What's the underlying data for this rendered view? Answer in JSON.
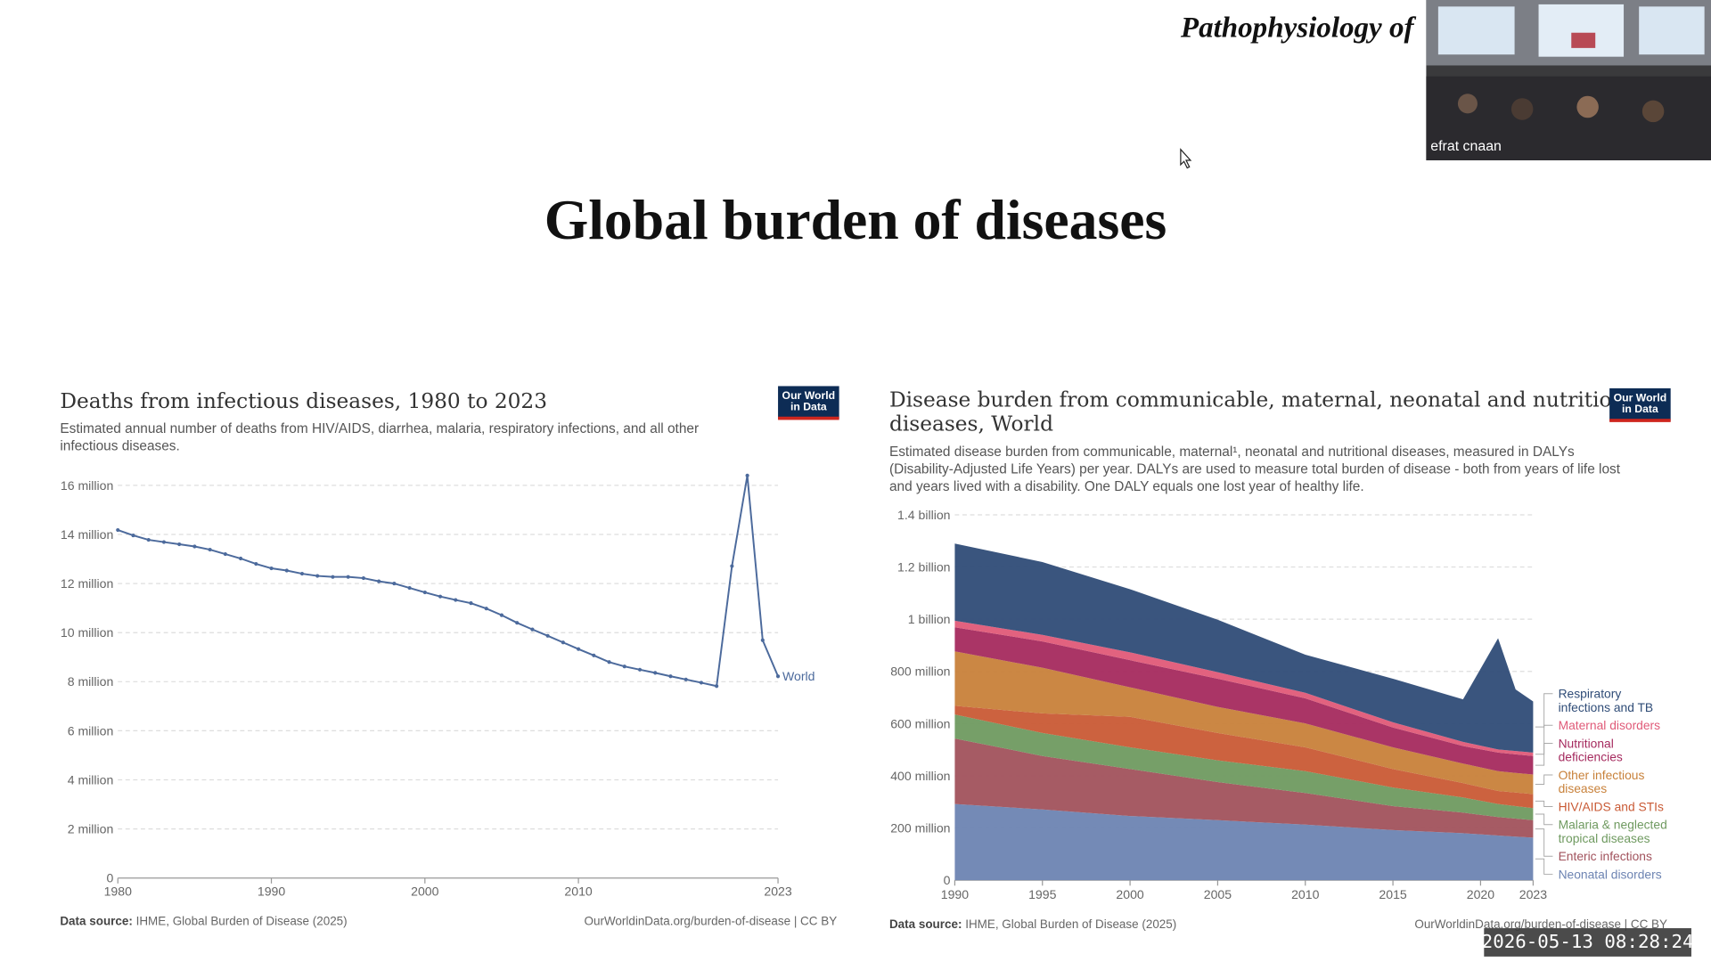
{
  "slide": {
    "header": "Pathophysiology of",
    "title": "Global burden of diseases"
  },
  "video": {
    "name": "efrat cnaan"
  },
  "timestamp": "2026-05-13 08:28:24",
  "chart_data": [
    {
      "type": "line",
      "title": "Deaths from infectious diseases, 1980 to 2023",
      "subtitle": "Estimated annual number of deaths from HIV/AIDS, diarrhea, malaria, respiratory infections, and all other infectious diseases.",
      "logo": [
        "Our World",
        "in Data"
      ],
      "source_label": "Data source:",
      "source": "IHME, Global Burden of Disease (2025)",
      "url": "OurWorldinData.org/burden-of-disease | CC BY",
      "x": [
        1980,
        1981,
        1982,
        1983,
        1984,
        1985,
        1986,
        1987,
        1988,
        1989,
        1990,
        1991,
        1992,
        1993,
        1994,
        1995,
        1996,
        1997,
        1998,
        1999,
        2000,
        2001,
        2002,
        2003,
        2004,
        2005,
        2006,
        2007,
        2008,
        2009,
        2010,
        2011,
        2012,
        2013,
        2014,
        2015,
        2016,
        2017,
        2018,
        2019,
        2020,
        2021,
        2022,
        2023
      ],
      "series": [
        {
          "name": "World",
          "color": "#4c6a9c",
          "values": [
            14180000,
            13960000,
            13780000,
            13690000,
            13600000,
            13510000,
            13380000,
            13200000,
            13020000,
            12800000,
            12620000,
            12530000,
            12400000,
            12310000,
            12270000,
            12270000,
            12220000,
            12090000,
            12000000,
            11820000,
            11640000,
            11470000,
            11330000,
            11200000,
            10980000,
            10710000,
            10400000,
            10130000,
            9870000,
            9600000,
            9330000,
            9070000,
            8800000,
            8620000,
            8490000,
            8360000,
            8220000,
            8090000,
            7960000,
            7820000,
            12710000,
            16400000,
            9690000,
            8220000
          ]
        }
      ],
      "xlim": [
        1980,
        2023
      ],
      "xticks": [
        1980,
        1990,
        2000,
        2010,
        2023
      ],
      "ylim": [
        0,
        16000000
      ],
      "yticks": [
        0,
        {
          "value": 2000000,
          "label": "2 million"
        },
        {
          "value": 4000000,
          "label": "4 million"
        },
        {
          "value": 6000000,
          "label": "6 million"
        },
        {
          "value": 8000000,
          "label": "8 million"
        },
        {
          "value": 10000000,
          "label": "10 million"
        },
        {
          "value": 12000000,
          "label": "12 million"
        },
        {
          "value": 14000000,
          "label": "14 million"
        },
        {
          "value": 16000000,
          "label": "16 million"
        }
      ],
      "grid": true
    },
    {
      "type": "area",
      "title": "Disease burden from communicable, maternal, neonatal and nutritional diseases, World",
      "subtitle": "Estimated disease burden from communicable, maternal¹, neonatal and nutritional diseases, measured in DALYs (Disability-Adjusted Life Years) per year. DALYs are used to measure total burden of disease - both from years of life lost and years lived with a disability. One DALY equals one lost year of healthy life.",
      "logo": [
        "Our World",
        "in Data"
      ],
      "source_label": "Data source:",
      "source": "IHME, Global Burden of Disease (2025)",
      "url": "OurWorldinData.org/burden-of-disease | CC BY",
      "stacked": true,
      "x": [
        1990,
        1995,
        2000,
        2005,
        2010,
        2015,
        2019,
        2021,
        2022,
        2023
      ],
      "series": [
        {
          "name": "Respiratory infections and TB",
          "color": "#2f4c77",
          "values": [
            296000000,
            279000000,
            242000000,
            201000000,
            146000000,
            167000000,
            163000000,
            426000000,
            236000000,
            196000000
          ]
        },
        {
          "name": "Maternal disorders",
          "color": "#e05a78",
          "values": [
            25000000,
            25000000,
            30000000,
            25000000,
            21000000,
            20000000,
            16000000,
            12000000,
            13000000,
            13000000
          ]
        },
        {
          "name": "Nutritional deficiencies",
          "color": "#a52a5e",
          "values": [
            92000000,
            101000000,
            104000000,
            108000000,
            96000000,
            76000000,
            67000000,
            71000000,
            71000000,
            71000000
          ]
        },
        {
          "name": "Other infectious diseases",
          "color": "#c8813a",
          "values": [
            209000000,
            175000000,
            113000000,
            100000000,
            92000000,
            83000000,
            75000000,
            76000000,
            75000000,
            75000000
          ]
        },
        {
          "name": "HIV/AIDS and STIs",
          "color": "#c95a35",
          "values": [
            33000000,
            75000000,
            117000000,
            105000000,
            91000000,
            71000000,
            55000000,
            50000000,
            52000000,
            54000000
          ]
        },
        {
          "name": "Malaria & neglected tropical diseases",
          "color": "#6f9a60",
          "values": [
            92000000,
            88000000,
            83000000,
            83000000,
            84000000,
            71000000,
            58000000,
            50000000,
            48000000,
            46000000
          ]
        },
        {
          "name": "Enteric infections",
          "color": "#a1525c",
          "values": [
            251000000,
            205000000,
            180000000,
            146000000,
            121000000,
            92000000,
            79000000,
            71000000,
            69000000,
            67000000
          ]
        },
        {
          "name": "Neonatal disorders",
          "color": "#6d84b2",
          "values": [
            292000000,
            271000000,
            246000000,
            230000000,
            213000000,
            192000000,
            180000000,
            171000000,
            167000000,
            163000000
          ]
        }
      ],
      "xlim": [
        1990,
        2023
      ],
      "xticks": [
        1990,
        1995,
        2000,
        2005,
        2010,
        2015,
        2020,
        2023
      ],
      "ylim": [
        0,
        1400000000
      ],
      "yticks": [
        0,
        {
          "value": 200000000,
          "label": "200 million"
        },
        {
          "value": 400000000,
          "label": "400 million"
        },
        {
          "value": 600000000,
          "label": "600 million"
        },
        {
          "value": 800000000,
          "label": "800 million"
        },
        {
          "value": 1000000000,
          "label": "1 billion"
        },
        {
          "value": 1200000000,
          "label": "1.2 billion"
        },
        {
          "value": 1400000000,
          "label": "1.4 billion"
        }
      ],
      "grid": true
    }
  ]
}
